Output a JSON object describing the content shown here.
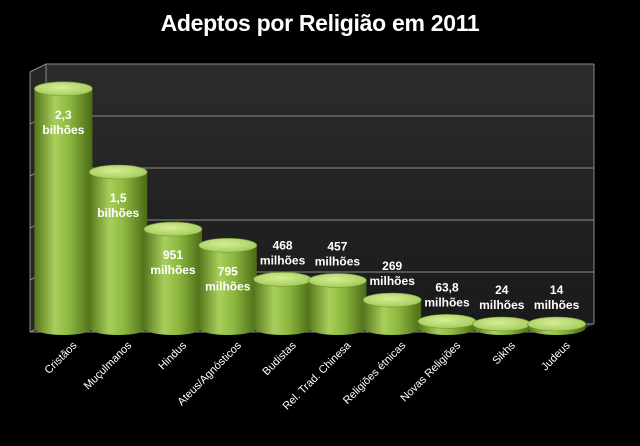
{
  "chart_data": {
    "type": "bar",
    "title": "Adeptos por Religião em 2011",
    "categories": [
      "Cristãos",
      "Muçulmanos",
      "Hindus",
      "Ateus/Agnósticos",
      "Budistas",
      "Rel. Trad. Chinesa",
      "Religiões étnicas",
      "Novas Religiões",
      "Sikhs",
      "Judeus"
    ],
    "values": [
      2300,
      1500,
      951,
      795,
      468,
      457,
      269,
      63.8,
      24,
      14
    ],
    "value_unit": "milhões",
    "data_labels": [
      [
        "2,3",
        "bilhões"
      ],
      [
        "1,5",
        "bilhões"
      ],
      [
        "951",
        "milhões"
      ],
      [
        "795",
        "milhões"
      ],
      [
        "468",
        "milhões"
      ],
      [
        "457",
        "milhões"
      ],
      [
        "269",
        "milhões"
      ],
      [
        "63,8",
        "milhões"
      ],
      [
        "24",
        "milhões"
      ],
      [
        "14",
        "milhões"
      ]
    ],
    "ylim": [
      0,
      2500
    ],
    "grid": true,
    "colors": {
      "bar": "#8db83f",
      "bar_light": "#c4e27e",
      "bar_dark": "#56761c",
      "grid": "#8a8a8a",
      "background": "#000000"
    }
  }
}
